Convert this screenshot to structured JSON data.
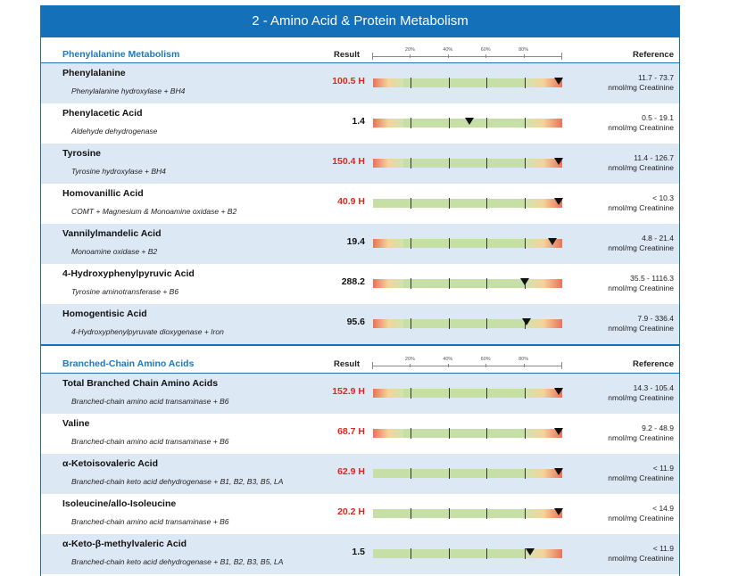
{
  "banner": "2 - Amino Acid & Protein Metabolism",
  "columns": {
    "result": "Result",
    "reference": "Reference",
    "scale_labels": [
      "20%",
      "40%",
      "60%",
      "80%"
    ]
  },
  "sections": [
    {
      "title": "Phenylalanine Metabolism",
      "rows": [
        {
          "name": "Phenylalanine",
          "enzyme": "Phenylalanine hydroxylase + BH4",
          "result": "100.5 H",
          "high": true,
          "ref_range": "11.7 - 73.7",
          "ref_unit": "nmol/mg Creatinine",
          "percentile": 98,
          "lowzone": true
        },
        {
          "name": "Phenylacetic Acid",
          "enzyme": "Aldehyde dehydrogenase",
          "result": "1.4",
          "high": false,
          "ref_range": "0.5 - 19.1",
          "ref_unit": "nmol/mg Creatinine",
          "percentile": 51,
          "lowzone": true
        },
        {
          "name": "Tyrosine",
          "enzyme": "Tyrosine hydroxylase + BH4",
          "result": "150.4 H",
          "high": true,
          "ref_range": "11.4 - 126.7",
          "ref_unit": "nmol/mg Creatinine",
          "percentile": 98,
          "lowzone": true
        },
        {
          "name": "Homovanillic Acid",
          "enzyme": "COMT + Magnesium & Monoamine oxidase + B2",
          "result": "40.9 H",
          "high": true,
          "ref_range": "< 10.3",
          "ref_unit": "nmol/mg Creatinine",
          "percentile": 98,
          "lowzone": false
        },
        {
          "name": "Vannilylmandelic Acid",
          "enzyme": "Monoamine oxidase + B2",
          "result": "19.4",
          "high": false,
          "ref_range": "4.8 - 21.4",
          "ref_unit": "nmol/mg Creatinine",
          "percentile": 95,
          "lowzone": true
        },
        {
          "name": "4-Hydroxyphenylpyruvic Acid",
          "enzyme": "Tyrosine aminotransferase + B6",
          "result": "288.2",
          "high": false,
          "ref_range": "35.5 - 1116.3",
          "ref_unit": "nmol/mg Creatinine",
          "percentile": 80,
          "lowzone": true
        },
        {
          "name": "Homogentisic Acid",
          "enzyme": "4-Hydroxyphenylpyruvate dioxygenase + Iron",
          "result": "95.6",
          "high": false,
          "ref_range": "7.9 - 336.4",
          "ref_unit": "nmol/mg Creatinine",
          "percentile": 81,
          "lowzone": true
        }
      ]
    },
    {
      "title": "Branched-Chain Amino Acids",
      "rows": [
        {
          "name": "Total Branched Chain Amino Acids",
          "enzyme": "Branched-chain amino acid transaminase + B6",
          "result": "152.9 H",
          "high": true,
          "ref_range": "14.3 - 105.4",
          "ref_unit": "nmol/mg Creatinine",
          "percentile": 98,
          "lowzone": true
        },
        {
          "name": "Valine",
          "enzyme": "Branched-chain amino acid transaminase + B6",
          "result": "68.7 H",
          "high": true,
          "ref_range": "9.2 - 48.9",
          "ref_unit": "nmol/mg Creatinine",
          "percentile": 98,
          "lowzone": true
        },
        {
          "name": "α-Ketoisovaleric Acid",
          "enzyme": "Branched-chain keto acid dehydrogenase + B1, B2, B3, B5, LA",
          "result": "62.9 H",
          "high": true,
          "ref_range": "< 11.9",
          "ref_unit": "nmol/mg Creatinine",
          "percentile": 98,
          "lowzone": false
        },
        {
          "name": "Isoleucine/allo-Isoleucine",
          "enzyme": "Branched-chain amino acid transaminase + B6",
          "result": "20.2 H",
          "high": true,
          "ref_range": "< 14.9",
          "ref_unit": "nmol/mg Creatinine",
          "percentile": 98,
          "lowzone": false
        },
        {
          "name": "α-Keto-β-methylvaleric Acid",
          "enzyme": "Branched-chain keto acid dehydrogenase + B1, B2, B3, B5, LA",
          "result": "1.5",
          "high": false,
          "ref_range": "< 11.9",
          "ref_unit": "nmol/mg Creatinine",
          "percentile": 83,
          "lowzone": false
        }
      ]
    }
  ]
}
